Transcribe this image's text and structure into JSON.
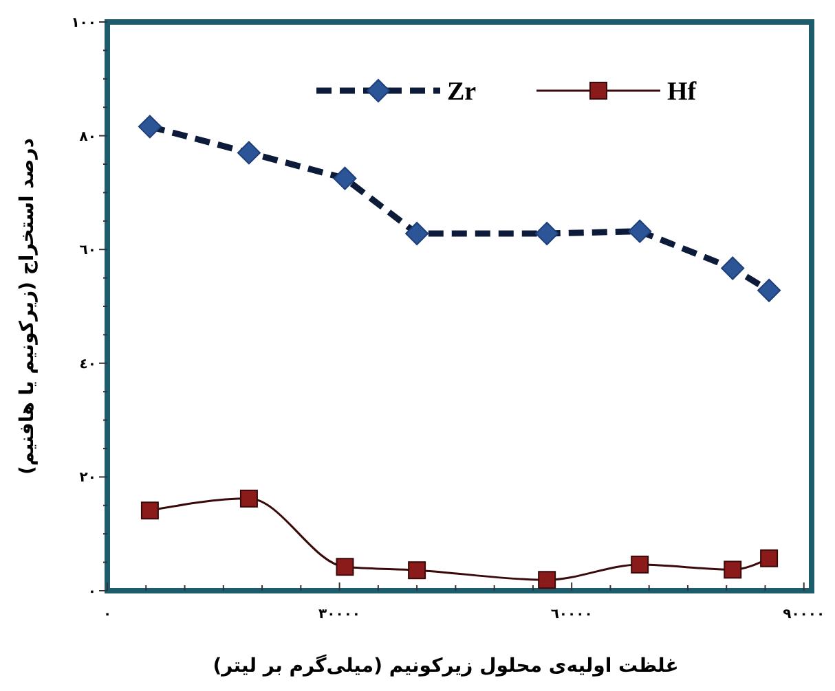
{
  "chart_data": {
    "type": "line",
    "xlabel": "غلظت اولیه‌ی محلول زیرکونیم (میلی‌گرم بر لیتر)",
    "ylabel": "درصد استخراج (زیرکونیم یا هافنیم)",
    "x": [
      5500,
      18300,
      30700,
      40000,
      56800,
      68800,
      80800,
      85500
    ],
    "series": [
      {
        "name": "Zr",
        "color": "#1f3f7a",
        "marker": "diamond",
        "line_style": "dashed",
        "values": [
          81.6,
          77,
          72.5,
          62.8,
          62.8,
          63.2,
          56.7,
          52.8
        ]
      },
      {
        "name": "Hf",
        "color": "#8b1a1a",
        "marker": "square",
        "line_style": "solid",
        "values": [
          14.1,
          16.2,
          4.2,
          3.6,
          1.9,
          4.6,
          3.7,
          5.7
        ]
      }
    ],
    "xlim": [
      0,
      91000
    ],
    "ylim": [
      0,
      100
    ],
    "xticks": [
      {
        "value": 0,
        "label": "٠"
      },
      {
        "value": 5000,
        "label": null
      },
      {
        "value": 10000,
        "label": null
      },
      {
        "value": 15000,
        "label": null
      },
      {
        "value": 20000,
        "label": null
      },
      {
        "value": 25000,
        "label": null
      },
      {
        "value": 30000,
        "label": "٣٠٠٠٠"
      },
      {
        "value": 35000,
        "label": null
      },
      {
        "value": 40000,
        "label": null
      },
      {
        "value": 45000,
        "label": null
      },
      {
        "value": 50000,
        "label": null
      },
      {
        "value": 55000,
        "label": null
      },
      {
        "value": 60000,
        "label": "٦٠٠٠٠"
      },
      {
        "value": 65000,
        "label": null
      },
      {
        "value": 70000,
        "label": null
      },
      {
        "value": 75000,
        "label": null
      },
      {
        "value": 80000,
        "label": null
      },
      {
        "value": 85000,
        "label": null
      },
      {
        "value": 90000,
        "label": "٩٠٠٠٠"
      }
    ],
    "yticks": [
      {
        "value": 0,
        "label": "٠"
      },
      {
        "value": 5,
        "label": null
      },
      {
        "value": 10,
        "label": null
      },
      {
        "value": 15,
        "label": null
      },
      {
        "value": 20,
        "label": "٢٠"
      },
      {
        "value": 25,
        "label": null
      },
      {
        "value": 30,
        "label": null
      },
      {
        "value": 35,
        "label": null
      },
      {
        "value": 40,
        "label": "٤٠"
      },
      {
        "value": 45,
        "label": null
      },
      {
        "value": 50,
        "label": null
      },
      {
        "value": 55,
        "label": null
      },
      {
        "value": 60,
        "label": "٦٠"
      },
      {
        "value": 65,
        "label": null
      },
      {
        "value": 70,
        "label": null
      },
      {
        "value": 75,
        "label": null
      },
      {
        "value": 80,
        "label": "٨٠"
      },
      {
        "value": 85,
        "label": null
      },
      {
        "value": 90,
        "label": null
      },
      {
        "value": 95,
        "label": null
      },
      {
        "value": 100,
        "label": "١٠٠"
      }
    ],
    "grid": false,
    "legend": "top"
  }
}
